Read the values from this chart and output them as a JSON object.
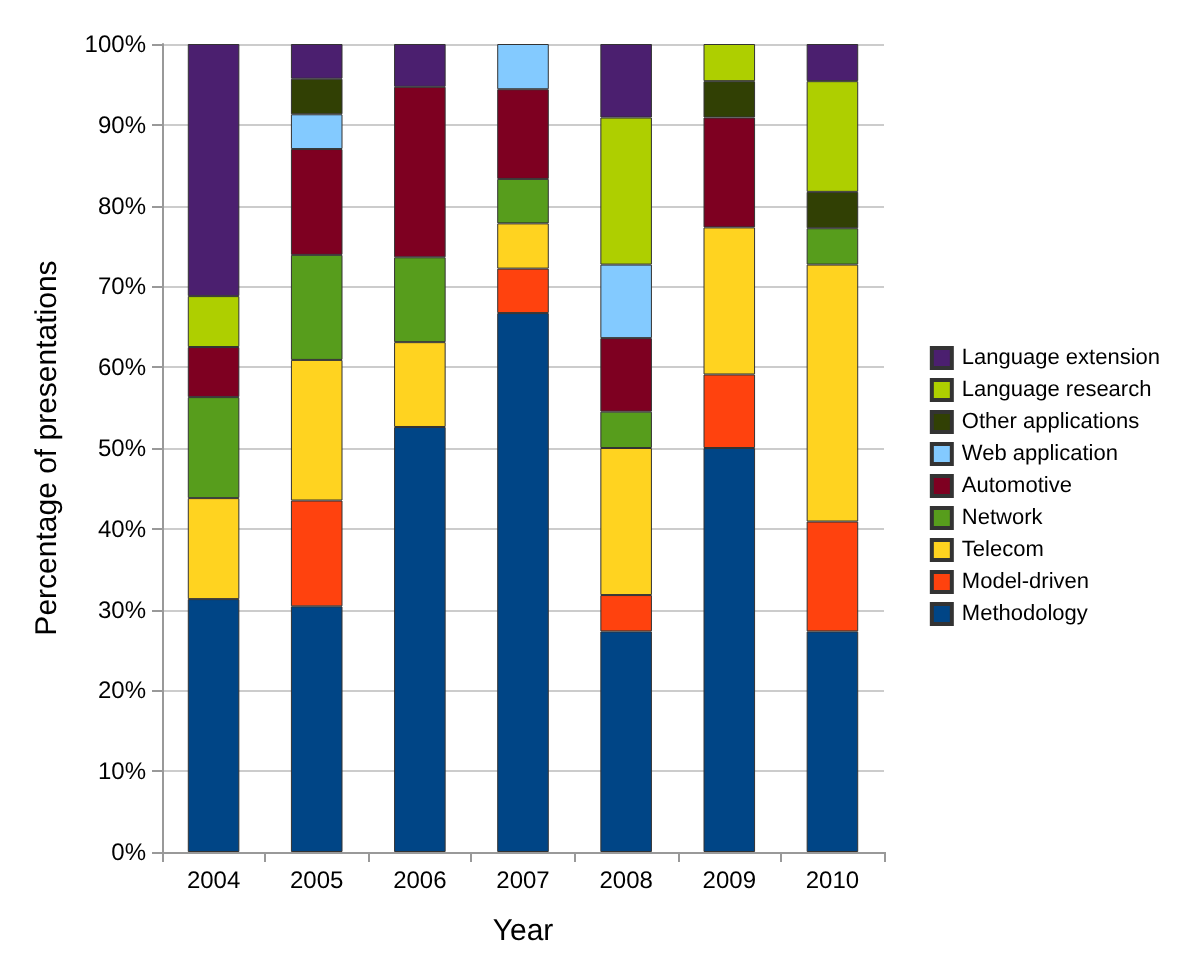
{
  "chart_data": {
    "type": "bar",
    "stacked": true,
    "xlabel": "Year",
    "ylabel": "Percentage of presentations",
    "categories": [
      "2004",
      "2005",
      "2006",
      "2007",
      "2008",
      "2009",
      "2010"
    ],
    "series": [
      {
        "name": "Methodology",
        "color": "#004586",
        "values": [
          31.3,
          30.4,
          52.6,
          66.7,
          27.3,
          50,
          27.3
        ]
      },
      {
        "name": "Model-driven",
        "color": "#ff420e",
        "values": [
          null,
          13.1,
          null,
          5.5,
          4.5,
          9.1,
          13.6
        ]
      },
      {
        "name": "Telecom",
        "color": "#ffd320",
        "values": [
          12.5,
          17.4,
          10.5,
          5.6,
          18.2,
          18.2,
          31.8
        ]
      },
      {
        "name": "Network",
        "color": "#579d1c",
        "values": [
          12.5,
          13.0,
          10.5,
          5.5,
          4.5,
          null,
          4.5
        ]
      },
      {
        "name": "Automotive",
        "color": "#7e0021",
        "values": [
          6.2,
          13.1,
          21.1,
          11.1,
          9.1,
          13.6,
          null
        ]
      },
      {
        "name": "Web application",
        "color": "#83caff",
        "values": [
          null,
          4.3,
          null,
          5.6,
          9.1,
          null,
          null
        ]
      },
      {
        "name": "Other applications",
        "color": "#314004",
        "values": [
          null,
          4.4,
          null,
          null,
          null,
          4.5,
          4.5
        ]
      },
      {
        "name": "Language research",
        "color": "#aecf00",
        "values": [
          6.3,
          null,
          null,
          null,
          18.2,
          4.6,
          13.7
        ]
      },
      {
        "name": "Language extension",
        "color": "#4b1f6f",
        "values": [
          31.2,
          4.3,
          5.3,
          null,
          9.1,
          null,
          4.6
        ]
      }
    ],
    "ylim": [
      0,
      100
    ],
    "yticks": [
      {
        "value": 0,
        "label": "0%"
      },
      {
        "value": 10,
        "label": "10%"
      },
      {
        "value": 20,
        "label": "20%"
      },
      {
        "value": 30,
        "label": "30%"
      },
      {
        "value": 40,
        "label": "40%"
      },
      {
        "value": 50,
        "label": "50%"
      },
      {
        "value": 60,
        "label": "60%"
      },
      {
        "value": 70,
        "label": "70%"
      },
      {
        "value": 80,
        "label": "80%"
      },
      {
        "value": 90,
        "label": "90%"
      },
      {
        "value": 100,
        "label": "100%"
      }
    ],
    "grid": "y",
    "legend": "right"
  }
}
